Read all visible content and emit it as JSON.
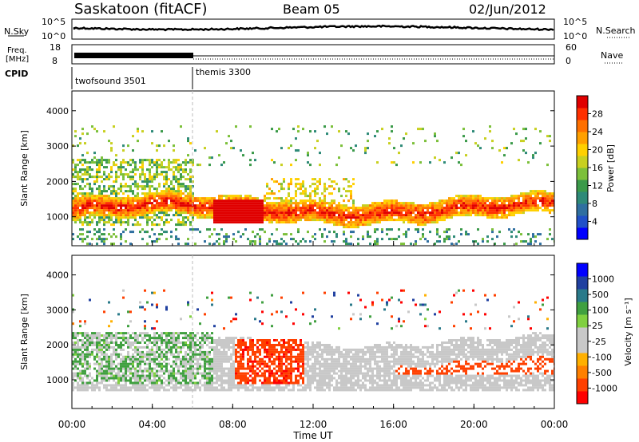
{
  "header": {
    "station": "Saskatoon (fitACF)",
    "beam": "Beam 05",
    "date": "02/Jun/2012"
  },
  "strips": {
    "nsky_label": "N.Sky",
    "nsky_ticks": [
      "10^5",
      "10^0"
    ],
    "nsearch_label": "N.Search",
    "nsearch_ticks": [
      "10^5",
      "10^0"
    ],
    "freq_label_line1": "Freq.",
    "freq_label_line2": "[MHz]",
    "freq_ticks": [
      "18",
      "8"
    ],
    "nave_label": "Nave",
    "nave_ticks": [
      "60",
      "0"
    ],
    "cpid_label": "CPID",
    "cpid_segments": [
      {
        "name": "twofsound 3501",
        "start_hour": 0,
        "end_hour": 6
      },
      {
        "name": "themis 3300",
        "start_hour": 6,
        "end_hour": 24
      }
    ]
  },
  "chart_data": [
    {
      "type": "heatmap",
      "panel": "power",
      "ylabel": "Slant Range [km]",
      "ylim": [
        180,
        4560
      ],
      "yticks": [
        "1000",
        "2000",
        "3000",
        "4000"
      ],
      "xlim_hours": [
        0,
        24
      ],
      "colorbar": {
        "label": "Power [dB]",
        "ticks": [
          "28",
          "24",
          "20",
          "16",
          "12",
          "8",
          "4"
        ],
        "range": [
          0,
          30
        ],
        "colors": [
          "#0000ff",
          "#2050c8",
          "#2f6fa0",
          "#2e8a78",
          "#3b9a4a",
          "#7cc03a",
          "#c8d020",
          "#ffd000",
          "#ffa000",
          "#ff7000",
          "#ff3000",
          "#e00000"
        ]
      },
      "features": [
        {
          "label": "main echo band",
          "start_hour": 0,
          "end_hour": 24,
          "range_km": [
            900,
            1500
          ],
          "power_db": 24
        },
        {
          "label": "intense patch",
          "start_hour": 7,
          "end_hour": 9.5,
          "range_km": [
            850,
            1500
          ],
          "power_db": 30
        }
      ]
    },
    {
      "type": "heatmap",
      "panel": "velocity",
      "ylabel": "Slant Range [km]",
      "ylim": [
        180,
        4560
      ],
      "yticks": [
        "1000",
        "2000",
        "3000",
        "4000"
      ],
      "xlim_hours": [
        0,
        24
      ],
      "colorbar": {
        "label": "Velocity [m s⁻¹]",
        "ticks": [
          "1000",
          "500",
          "100",
          "25",
          "-25",
          "-100",
          "-500",
          "-1000"
        ],
        "colors": [
          "#ff0000",
          "#ff4000",
          "#ff8000",
          "#ffb000",
          "#c8c8c8",
          "#c8c8c8",
          "#80d040",
          "#40a040",
          "#2a7a8a",
          "#2040a0",
          "#0000ff"
        ]
      },
      "features": [
        {
          "label": "ground scatter",
          "start_hour": 0,
          "end_hour": 24,
          "range_km": [
            700,
            2500
          ],
          "velocity": 0
        },
        {
          "label": "negative velocity echoes",
          "start_hour": 8,
          "end_hour": 11.5,
          "range_km": [
            900,
            2200
          ],
          "velocity": -400
        }
      ]
    }
  ],
  "xaxis": {
    "ticks": [
      "00:00",
      "04:00",
      "08:00",
      "12:00",
      "16:00",
      "20:00",
      "00:00"
    ],
    "label": "Time UT"
  }
}
